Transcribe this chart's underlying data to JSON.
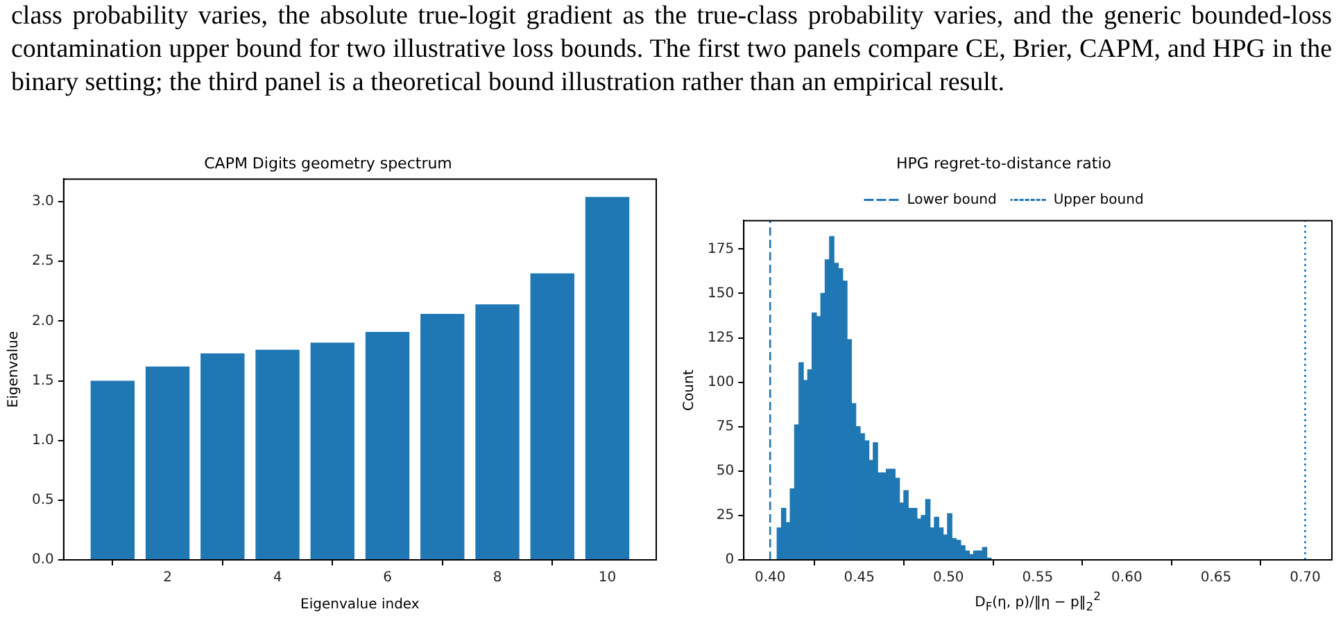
{
  "chart_data": [
    {
      "type": "bar",
      "title": "CAPM Digits geometry spectrum",
      "xlabel": "Eigenvalue index",
      "ylabel": "Eigenvalue",
      "annotations": [
        "class probability varies, the absolute true-logit gradient as the true-class probability varies, and the generic bounded-loss contamination upper bound for two illustrative loss bounds. The first two panels compare CE, Brier, CAPM, and HPG in the binary setting; the third panel is a theoretical bound illustration rather than an empirical result."
      ],
      "x": [
        1,
        2,
        3,
        4,
        5,
        6,
        7,
        8,
        9,
        10
      ],
      "series": [
        {
          "color": "#1f77b4",
          "values": [
            1.5,
            1.62,
            1.73,
            1.76,
            1.82,
            1.91,
            2.06,
            2.14,
            2.4,
            3.04
          ]
        }
      ],
      "xlim": [
        0.11,
        10.89
      ],
      "xticks": [
        2,
        4,
        6,
        8,
        10
      ],
      "ylim": [
        0,
        3.19
      ],
      "yticks": [
        {
          "value": 0,
          "label": "0.0"
        },
        {
          "value": 0.5,
          "label": "0.5"
        },
        {
          "value": 1,
          "label": "1.0"
        },
        {
          "value": 1.5,
          "label": "1.5"
        },
        {
          "value": 2,
          "label": "2.0"
        },
        {
          "value": 2.5,
          "label": "2.5"
        },
        {
          "value": 3,
          "label": "3.0"
        }
      ],
      "grid": false,
      "legend": false
    },
    {
      "type": "histogram",
      "title": "HPG regret-to-distance ratio",
      "xlabel": "D$_{F}$(η, p)/‖η − p‖$_{2}$$^{2}$",
      "ylabel": "Count",
      "bins": [
        0.4039,
        0.40635,
        0.4088,
        0.41125,
        0.4137,
        0.41615,
        0.4186,
        0.42105,
        0.4235,
        0.42595,
        0.4284,
        0.43085,
        0.4333,
        0.43575,
        0.4382,
        0.44065,
        0.4431,
        0.44555,
        0.448,
        0.45045,
        0.4529,
        0.45535,
        0.4578,
        0.46025,
        0.4627,
        0.46515,
        0.4676,
        0.47005,
        0.4725,
        0.47495,
        0.4774,
        0.47985,
        0.4823,
        0.48475,
        0.4872,
        0.48965,
        0.4921,
        0.49455,
        0.497,
        0.49945,
        0.5019,
        0.50435,
        0.5068,
        0.50925,
        0.5117,
        0.51415,
        0.5166,
        0.51905,
        0.5215,
        0.52395
      ],
      "values": [
        18,
        29,
        21,
        40,
        76,
        111,
        101,
        107,
        139,
        137,
        150,
        169,
        182,
        167,
        164,
        157,
        124,
        88,
        75,
        71,
        67,
        56,
        66,
        49,
        49,
        51,
        51,
        46,
        32,
        39,
        29,
        29,
        23,
        25,
        34,
        18,
        24,
        18,
        14,
        26,
        12,
        11,
        8,
        5,
        3,
        5,
        5,
        7,
        1
      ],
      "color": "#1f77b4",
      "ref_lines": [
        {
          "axis": "x",
          "value": 0.4,
          "label": "Lower bound",
          "color": "#1f77b4",
          "line_style": "dashed"
        },
        {
          "axis": "x",
          "value": 0.7,
          "label": "Upper bound",
          "color": "#1f77b4",
          "line_style": "dotted"
        }
      ],
      "xlim": [
        0.3852,
        0.715
      ],
      "xticks": [
        {
          "value": 0.4,
          "label": "0.40"
        },
        {
          "value": 0.45,
          "label": "0.45"
        },
        {
          "value": 0.5,
          "label": "0.50"
        },
        {
          "value": 0.55,
          "label": "0.55"
        },
        {
          "value": 0.6,
          "label": "0.60"
        },
        {
          "value": 0.65,
          "label": "0.65"
        },
        {
          "value": 0.7,
          "label": "0.70"
        }
      ],
      "ylim": [
        0,
        191
      ],
      "yticks": [
        0,
        25,
        50,
        75,
        100,
        125,
        150,
        175
      ],
      "grid": false,
      "legend": "top"
    }
  ]
}
